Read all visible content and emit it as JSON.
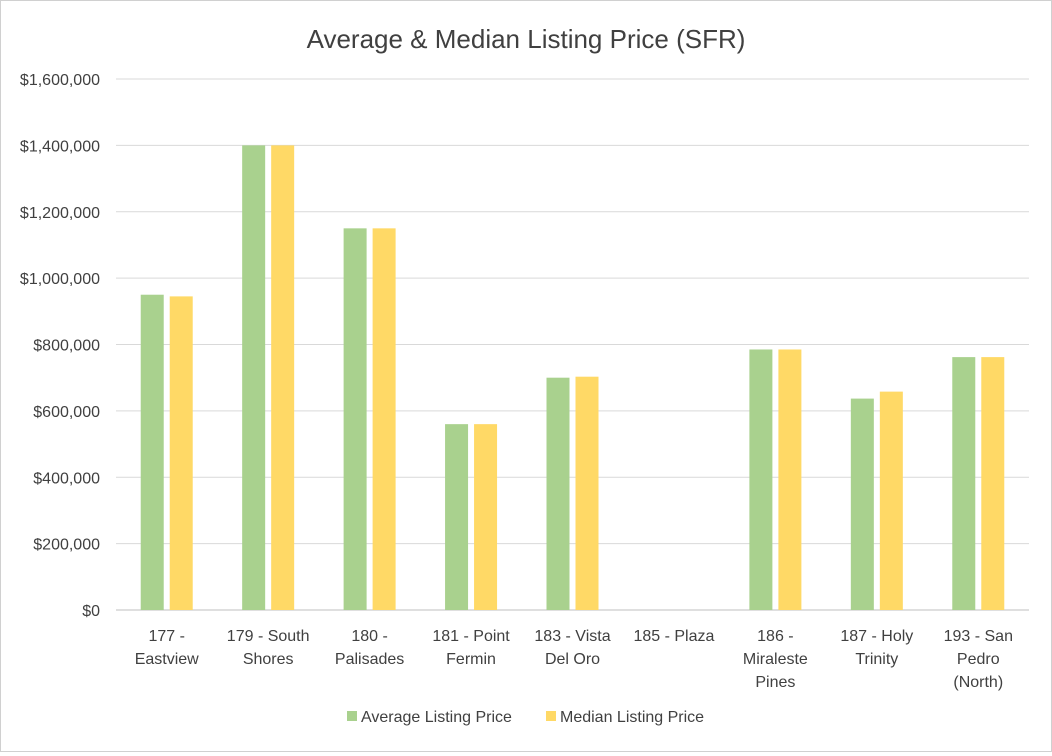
{
  "chart_data": {
    "type": "bar",
    "title": "Average & Median Listing Price (SFR)",
    "xlabel": "",
    "ylabel": "",
    "ylim": [
      0,
      1600000
    ],
    "y_ticks": [
      "$0",
      "$200,000",
      "$400,000",
      "$600,000",
      "$800,000",
      "$1,000,000",
      "$1,200,000",
      "$1,400,000",
      "$1,600,000"
    ],
    "y_tick_values": [
      0,
      200000,
      400000,
      600000,
      800000,
      1000000,
      1200000,
      1400000,
      1600000
    ],
    "grid": true,
    "legend_position": "bottom",
    "categories": [
      [
        "177 -",
        "Eastview"
      ],
      [
        "179 - South",
        "Shores"
      ],
      [
        "180 -",
        "Palisades"
      ],
      [
        "181 - Point",
        "Fermin"
      ],
      [
        "183 - Vista",
        "Del Oro"
      ],
      [
        "185 - Plaza"
      ],
      [
        "186 -",
        "Miraleste",
        "Pines"
      ],
      [
        "187 - Holy",
        "Trinity"
      ],
      [
        "193 - San",
        "Pedro",
        "(North)"
      ]
    ],
    "series": [
      {
        "name": "Average Listing Price",
        "color": "#a9d18e",
        "values": [
          950000,
          1400000,
          1150000,
          560000,
          700000,
          0,
          785000,
          637000,
          762000
        ]
      },
      {
        "name": "Median Listing Price",
        "color": "#ffd966",
        "values": [
          945000,
          1400000,
          1150000,
          560000,
          703000,
          0,
          785000,
          658000,
          762000
        ]
      }
    ]
  }
}
